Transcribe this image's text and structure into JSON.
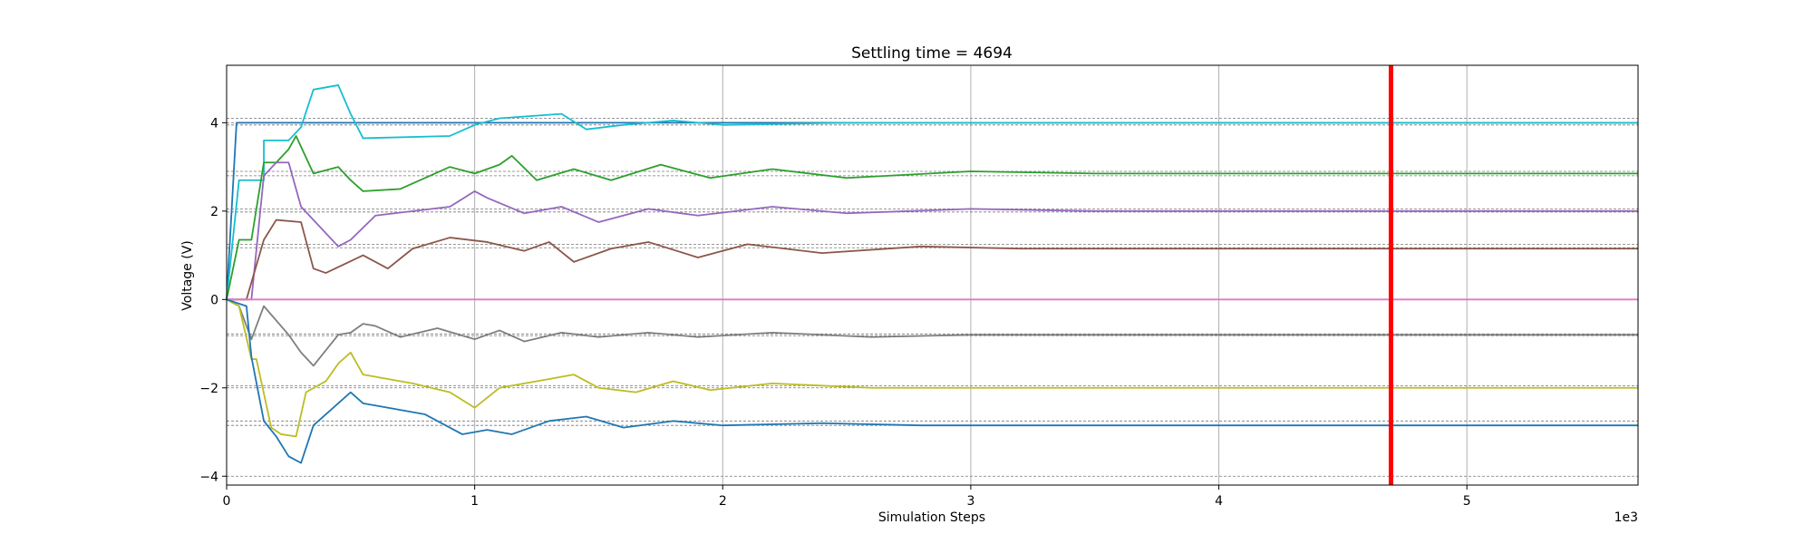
{
  "chart_data": {
    "type": "line",
    "title": "Settling time = 4694",
    "xlabel": "Simulation Steps",
    "ylabel": "Voltage (V)",
    "x_offset_label": "1e3",
    "xlim": [
      0,
      5.69
    ],
    "ylim": [
      -4.2,
      5.3
    ],
    "x_ticks": [
      0,
      1,
      2,
      3,
      4,
      5
    ],
    "x_tick_labels": [
      "0",
      "1",
      "2",
      "3",
      "4",
      "5"
    ],
    "y_ticks": [
      -4,
      -2,
      0,
      2,
      4
    ],
    "y_tick_labels": [
      "−4",
      "−2",
      "0",
      "2",
      "4"
    ],
    "grid": "x-only",
    "settling_marker": {
      "x": 4.694,
      "color": "#ff0000"
    },
    "reference_lines": [
      4.1,
      4.0,
      3.95,
      2.9,
      2.8,
      2.05,
      1.98,
      1.25,
      1.17,
      -0.78,
      -0.82,
      -1.95,
      -2.0,
      -2.75,
      -2.85,
      -4.0
    ],
    "series": [
      {
        "color": "#1f77b4",
        "x": [
          0,
          0.04,
          0.05,
          5.69
        ],
        "y": [
          0,
          4.0,
          4.0,
          4.0
        ]
      },
      {
        "color": "#17becf",
        "x": [
          0,
          0.05,
          0.05,
          0.15,
          0.15,
          0.25,
          0.3,
          0.35,
          0.45,
          0.5,
          0.55,
          0.9,
          1.0,
          1.1,
          1.35,
          1.45,
          1.6,
          1.8,
          2.0,
          2.5,
          3.0,
          5.69
        ],
        "y": [
          0,
          2.7,
          2.7,
          2.7,
          3.6,
          3.6,
          3.9,
          4.75,
          4.85,
          4.2,
          3.65,
          3.7,
          3.95,
          4.1,
          4.2,
          3.85,
          3.95,
          4.05,
          3.95,
          4.0,
          4.0,
          4.0
        ]
      },
      {
        "color": "#2ca02c",
        "x": [
          0,
          0.05,
          0.1,
          0.15,
          0.2,
          0.25,
          0.28,
          0.35,
          0.45,
          0.5,
          0.55,
          0.7,
          0.9,
          1.0,
          1.1,
          1.15,
          1.25,
          1.4,
          1.55,
          1.75,
          1.95,
          2.2,
          2.5,
          3.0,
          3.5,
          5.69
        ],
        "y": [
          0,
          1.35,
          1.35,
          3.1,
          3.1,
          3.4,
          3.7,
          2.85,
          3.0,
          2.7,
          2.45,
          2.5,
          3.0,
          2.85,
          3.05,
          3.25,
          2.7,
          2.95,
          2.7,
          3.05,
          2.75,
          2.95,
          2.75,
          2.9,
          2.85,
          2.85
        ]
      },
      {
        "color": "#9467bd",
        "x": [
          0,
          0.1,
          0.15,
          0.2,
          0.25,
          0.3,
          0.45,
          0.5,
          0.6,
          0.9,
          1.0,
          1.05,
          1.2,
          1.35,
          1.5,
          1.7,
          1.9,
          2.2,
          2.5,
          3.0,
          3.5,
          5.69
        ],
        "y": [
          0,
          0,
          2.8,
          3.1,
          3.1,
          2.1,
          1.2,
          1.35,
          1.9,
          2.1,
          2.45,
          2.3,
          1.95,
          2.1,
          1.75,
          2.05,
          1.9,
          2.1,
          1.95,
          2.05,
          2.0,
          2.0
        ]
      },
      {
        "color": "#8c564b",
        "x": [
          0,
          0.05,
          0.08,
          0.15,
          0.2,
          0.3,
          0.35,
          0.4,
          0.55,
          0.65,
          0.75,
          0.9,
          1.05,
          1.2,
          1.3,
          1.4,
          1.55,
          1.7,
          1.9,
          2.1,
          2.4,
          2.8,
          3.2,
          5.69
        ],
        "y": [
          0,
          0,
          0,
          1.35,
          1.8,
          1.75,
          0.7,
          0.6,
          1.0,
          0.7,
          1.15,
          1.4,
          1.3,
          1.1,
          1.3,
          0.85,
          1.15,
          1.3,
          0.95,
          1.25,
          1.05,
          1.2,
          1.15,
          1.15
        ]
      },
      {
        "color": "#e377c2",
        "x": [
          0,
          5.69
        ],
        "y": [
          0,
          0
        ]
      },
      {
        "color": "#7f7f7f",
        "x": [
          0,
          0.05,
          0.1,
          0.15,
          0.25,
          0.3,
          0.35,
          0.45,
          0.5,
          0.55,
          0.6,
          0.7,
          0.85,
          1.0,
          1.1,
          1.2,
          1.35,
          1.5,
          1.7,
          1.9,
          2.2,
          2.6,
          3.0,
          5.69
        ],
        "y": [
          0,
          -0.15,
          -0.9,
          -0.15,
          -0.8,
          -1.2,
          -1.5,
          -0.8,
          -0.75,
          -0.55,
          -0.6,
          -0.85,
          -0.65,
          -0.9,
          -0.7,
          -0.95,
          -0.75,
          -0.85,
          -0.75,
          -0.85,
          -0.75,
          -0.85,
          -0.8,
          -0.8
        ]
      },
      {
        "color": "#bcbd22",
        "x": [
          0,
          0.05,
          0.1,
          0.12,
          0.18,
          0.22,
          0.28,
          0.32,
          0.4,
          0.45,
          0.5,
          0.55,
          0.75,
          0.9,
          1.0,
          1.1,
          1.25,
          1.4,
          1.5,
          1.65,
          1.8,
          1.95,
          2.2,
          2.6,
          3.0,
          5.69
        ],
        "y": [
          0,
          -0.15,
          -1.35,
          -1.35,
          -2.9,
          -3.05,
          -3.1,
          -2.1,
          -1.85,
          -1.45,
          -1.2,
          -1.7,
          -1.9,
          -2.1,
          -2.45,
          -2.0,
          -1.85,
          -1.7,
          -2.0,
          -2.1,
          -1.85,
          -2.05,
          -1.9,
          -2.0,
          -2.0,
          -2.0
        ]
      },
      {
        "color": "#1f77b4",
        "x": [
          0,
          0.08,
          0.1,
          0.15,
          0.2,
          0.25,
          0.3,
          0.35,
          0.45,
          0.5,
          0.55,
          0.6,
          0.8,
          0.95,
          1.05,
          1.15,
          1.3,
          1.45,
          1.6,
          1.8,
          2.0,
          2.4,
          2.8,
          3.2,
          5.69
        ],
        "y": [
          0,
          -0.15,
          -1.3,
          -2.75,
          -3.1,
          -3.55,
          -3.7,
          -2.85,
          -2.35,
          -2.1,
          -2.35,
          -2.4,
          -2.6,
          -3.05,
          -2.95,
          -3.05,
          -2.75,
          -2.65,
          -2.9,
          -2.75,
          -2.85,
          -2.8,
          -2.85,
          -2.85,
          -2.85
        ]
      }
    ]
  }
}
